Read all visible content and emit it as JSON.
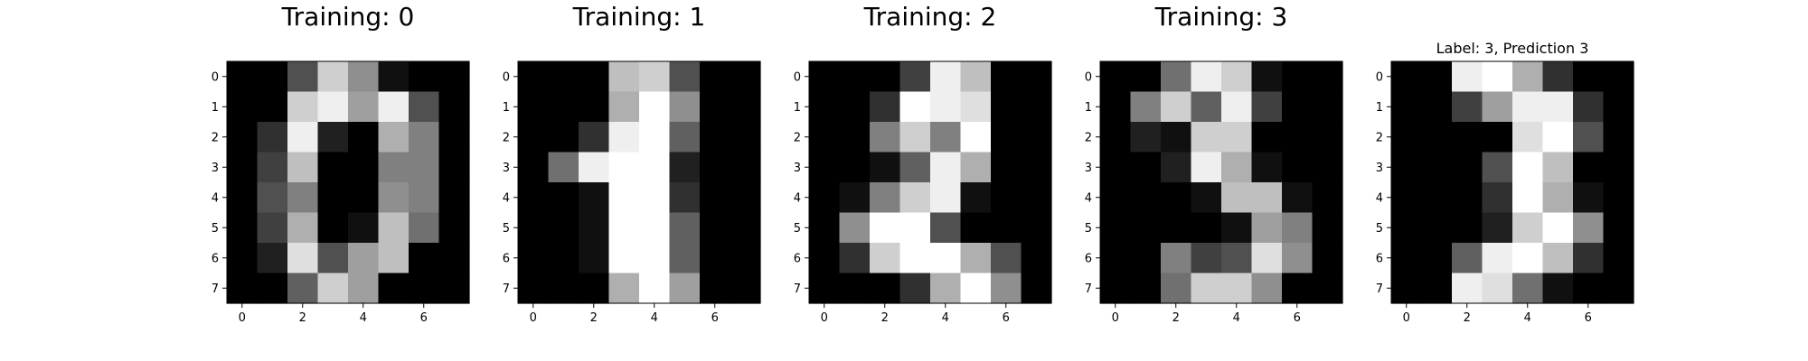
{
  "figure": {
    "type": "image-grid",
    "colormap": "gray",
    "value_range": [
      0,
      16
    ]
  },
  "chart_data": [
    {
      "type": "heatmap",
      "title": "Training: 0",
      "x_ticks": [
        "0",
        "2",
        "4",
        "6"
      ],
      "y_ticks": [
        "0",
        "1",
        "2",
        "3",
        "4",
        "5",
        "6",
        "7"
      ],
      "values": [
        [
          0,
          0,
          5,
          13,
          9,
          1,
          0,
          0
        ],
        [
          0,
          0,
          13,
          15,
          10,
          15,
          5,
          0
        ],
        [
          0,
          3,
          15,
          2,
          0,
          11,
          8,
          0
        ],
        [
          0,
          4,
          12,
          0,
          0,
          8,
          8,
          0
        ],
        [
          0,
          5,
          8,
          0,
          0,
          9,
          8,
          0
        ],
        [
          0,
          4,
          11,
          0,
          1,
          12,
          7,
          0
        ],
        [
          0,
          2,
          14,
          5,
          10,
          12,
          0,
          0
        ],
        [
          0,
          0,
          6,
          13,
          10,
          0,
          0,
          0
        ]
      ]
    },
    {
      "type": "heatmap",
      "title": "Training: 1",
      "x_ticks": [
        "0",
        "2",
        "4",
        "6"
      ],
      "y_ticks": [
        "0",
        "1",
        "2",
        "3",
        "4",
        "5",
        "6",
        "7"
      ],
      "values": [
        [
          0,
          0,
          0,
          12,
          13,
          5,
          0,
          0
        ],
        [
          0,
          0,
          0,
          11,
          16,
          9,
          0,
          0
        ],
        [
          0,
          0,
          3,
          15,
          16,
          6,
          0,
          0
        ],
        [
          0,
          7,
          15,
          16,
          16,
          2,
          0,
          0
        ],
        [
          0,
          0,
          1,
          16,
          16,
          3,
          0,
          0
        ],
        [
          0,
          0,
          1,
          16,
          16,
          6,
          0,
          0
        ],
        [
          0,
          0,
          1,
          16,
          16,
          6,
          0,
          0
        ],
        [
          0,
          0,
          0,
          11,
          16,
          10,
          0,
          0
        ]
      ]
    },
    {
      "type": "heatmap",
      "title": "Training: 2",
      "x_ticks": [
        "0",
        "2",
        "4",
        "6"
      ],
      "y_ticks": [
        "0",
        "1",
        "2",
        "3",
        "4",
        "5",
        "6",
        "7"
      ],
      "values": [
        [
          0,
          0,
          0,
          4,
          15,
          12,
          0,
          0
        ],
        [
          0,
          0,
          3,
          16,
          15,
          14,
          0,
          0
        ],
        [
          0,
          0,
          8,
          13,
          8,
          16,
          0,
          0
        ],
        [
          0,
          0,
          1,
          6,
          15,
          11,
          0,
          0
        ],
        [
          0,
          1,
          8,
          13,
          15,
          1,
          0,
          0
        ],
        [
          0,
          9,
          16,
          16,
          5,
          0,
          0,
          0
        ],
        [
          0,
          3,
          13,
          16,
          16,
          11,
          5,
          0
        ],
        [
          0,
          0,
          0,
          3,
          11,
          16,
          9,
          0
        ]
      ]
    },
    {
      "type": "heatmap",
      "title": "Training: 3",
      "x_ticks": [
        "0",
        "2",
        "4",
        "6"
      ],
      "y_ticks": [
        "0",
        "1",
        "2",
        "3",
        "4",
        "5",
        "6",
        "7"
      ],
      "values": [
        [
          0,
          0,
          7,
          15,
          13,
          1,
          0,
          0
        ],
        [
          0,
          8,
          13,
          6,
          15,
          4,
          0,
          0
        ],
        [
          0,
          2,
          1,
          13,
          13,
          0,
          0,
          0
        ],
        [
          0,
          0,
          2,
          15,
          11,
          1,
          0,
          0
        ],
        [
          0,
          0,
          0,
          1,
          12,
          12,
          1,
          0
        ],
        [
          0,
          0,
          0,
          0,
          1,
          10,
          8,
          0
        ],
        [
          0,
          0,
          8,
          4,
          5,
          14,
          9,
          0
        ],
        [
          0,
          0,
          7,
          13,
          13,
          9,
          0,
          0
        ]
      ]
    },
    {
      "type": "heatmap",
      "title": "Label: 3, Prediction 3",
      "x_ticks": [
        "0",
        "2",
        "4",
        "6"
      ],
      "y_ticks": [
        "0",
        "1",
        "2",
        "3",
        "4",
        "5",
        "6",
        "7"
      ],
      "values": [
        [
          0,
          0,
          15,
          16,
          11,
          3,
          0,
          0
        ],
        [
          0,
          0,
          4,
          10,
          15,
          15,
          3,
          0
        ],
        [
          0,
          0,
          0,
          0,
          14,
          16,
          5,
          0
        ],
        [
          0,
          0,
          0,
          5,
          16,
          12,
          0,
          0
        ],
        [
          0,
          0,
          0,
          3,
          16,
          11,
          1,
          0
        ],
        [
          0,
          0,
          0,
          2,
          13,
          16,
          9,
          0
        ],
        [
          0,
          0,
          6,
          15,
          16,
          12,
          3,
          0
        ],
        [
          0,
          0,
          15,
          14,
          7,
          1,
          0,
          0
        ]
      ]
    }
  ]
}
